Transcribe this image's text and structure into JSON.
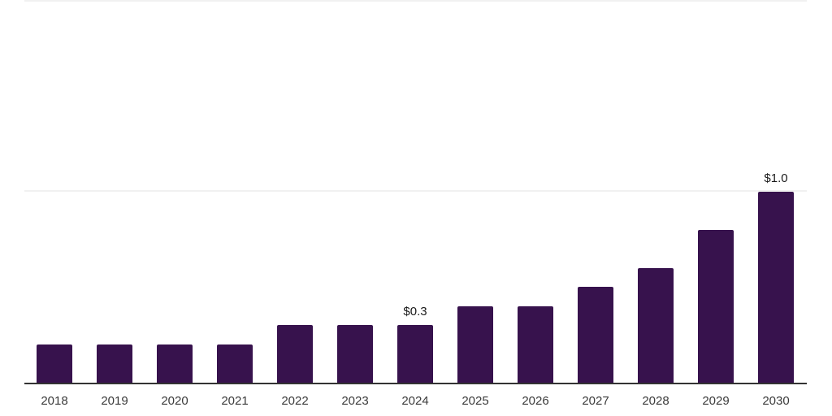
{
  "chart_data": {
    "type": "bar",
    "categories": [
      "2018",
      "2019",
      "2020",
      "2021",
      "2022",
      "2023",
      "2024",
      "2025",
      "2026",
      "2027",
      "2028",
      "2029",
      "2030"
    ],
    "values": [
      0.2,
      0.2,
      0.2,
      0.2,
      0.3,
      0.3,
      0.3,
      0.4,
      0.4,
      0.5,
      0.6,
      0.8,
      1.0
    ],
    "data_labels": [
      "",
      "",
      "",
      "",
      "",
      "",
      "$0.3",
      "",
      "",
      "",
      "",
      "",
      "$1.0"
    ],
    "title": "",
    "xlabel": "",
    "ylabel": "",
    "ylim": [
      0,
      2.0
    ],
    "gridlines_y": [
      1.0,
      2.0
    ],
    "grid": "horizontal-only",
    "legend": "none",
    "colors": {
      "bar": "#37124D",
      "axis": "#333333",
      "gridline": "#F1F1F1",
      "tick_label": "#3A3A3A",
      "data_label": "#1A1A1A",
      "background": "#FFFFFF"
    }
  }
}
